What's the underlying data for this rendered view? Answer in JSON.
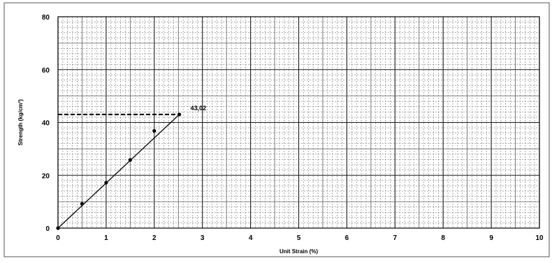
{
  "chart_data": {
    "type": "scatter",
    "title": "",
    "xlabel": "Unit Strain (%)",
    "ylabel": "Strength (kg/cm²)",
    "xlim": [
      0,
      10
    ],
    "ylim": [
      0,
      80
    ],
    "x_ticks": [
      "0",
      "1",
      "2",
      "3",
      "4",
      "5",
      "6",
      "7",
      "8",
      "9",
      "10"
    ],
    "y_ticks": [
      "0",
      "20",
      "40",
      "60",
      "80"
    ],
    "grid": true,
    "legend": "none",
    "series": [
      {
        "x": [
          0,
          0.5,
          1.0,
          1.5,
          2.0
        ],
        "y": [
          0,
          9.2,
          17.2,
          25.8,
          36.8
        ]
      }
    ],
    "fit_line": {
      "x": [
        0,
        2.52
      ],
      "y": [
        0,
        43.02
      ]
    },
    "annotation": {
      "text": "43,02",
      "x": 2.52,
      "y": 43.02
    },
    "colors": {
      "grid_major": "#1a1a1a",
      "grid_minor": "#5a5a5a",
      "line": "#000000",
      "points": "#000000"
    }
  }
}
